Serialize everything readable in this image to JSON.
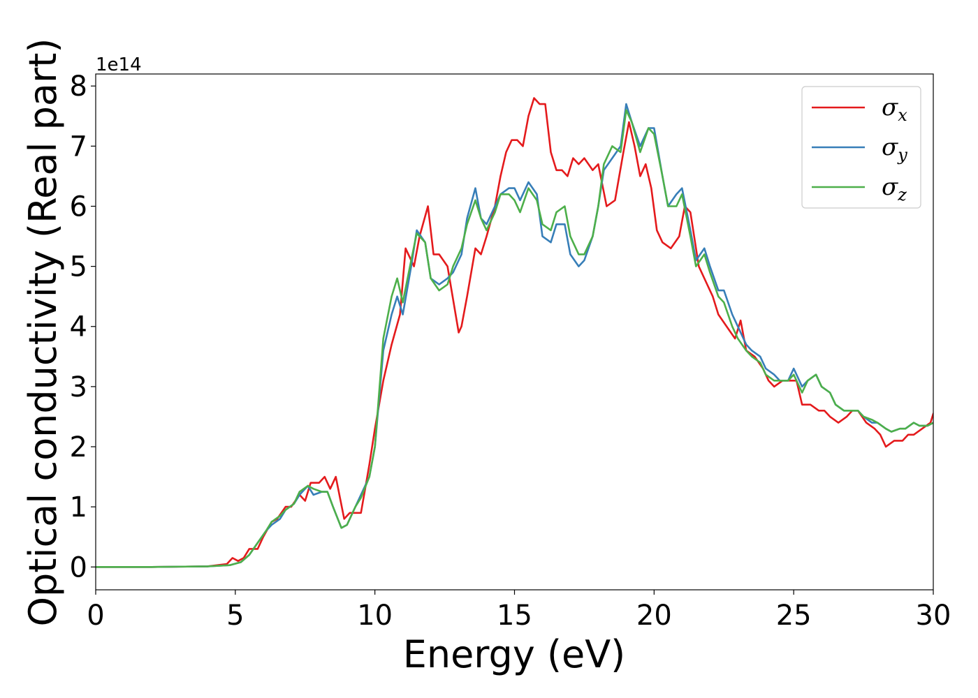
{
  "chart_data": {
    "type": "line",
    "title": "",
    "xlabel": "Energy (eV)",
    "ylabel": "Optical conductivity (Real part)",
    "y_offset_label": "1e14",
    "xlim": [
      0,
      30
    ],
    "ylim": [
      -0.38,
      8.2
    ],
    "xticks": [
      0,
      5,
      10,
      15,
      20,
      25,
      30
    ],
    "xtick_labels": [
      "0",
      "5",
      "10",
      "15",
      "20",
      "25",
      "30"
    ],
    "yticks": [
      0,
      1,
      2,
      3,
      4,
      5,
      6,
      7,
      8
    ],
    "ytick_labels": [
      "0",
      "1",
      "2",
      "3",
      "4",
      "5",
      "6",
      "7",
      "8"
    ],
    "grid": false,
    "legend_position": "top-right",
    "series": [
      {
        "name": "σx",
        "label_base": "σ",
        "label_sub": "x",
        "color": "#e41a1c",
        "x": [
          0,
          2,
          4,
          4.7,
          4.9,
          5.1,
          5.3,
          5.5,
          5.8,
          6.0,
          6.3,
          6.5,
          6.8,
          7.0,
          7.3,
          7.5,
          7.7,
          8.0,
          8.2,
          8.4,
          8.6,
          8.9,
          9.1,
          9.3,
          9.5,
          9.8,
          10.0,
          10.3,
          10.6,
          10.9,
          11.1,
          11.4,
          11.6,
          11.9,
          12.1,
          12.3,
          12.6,
          13.0,
          13.1,
          13.3,
          13.6,
          13.8,
          14.0,
          14.3,
          14.5,
          14.7,
          14.9,
          15.1,
          15.3,
          15.5,
          15.7,
          15.9,
          16.1,
          16.3,
          16.5,
          16.7,
          16.9,
          17.1,
          17.3,
          17.5,
          17.8,
          18.0,
          18.3,
          18.6,
          18.9,
          19.1,
          19.3,
          19.5,
          19.7,
          19.9,
          20.1,
          20.3,
          20.6,
          20.9,
          21.1,
          21.3,
          21.6,
          21.9,
          22.1,
          22.3,
          22.6,
          22.9,
          23.1,
          23.3,
          23.6,
          23.9,
          24.1,
          24.3,
          24.6,
          24.9,
          25.1,
          25.3,
          25.6,
          25.9,
          26.1,
          26.3,
          26.6,
          26.9,
          27.1,
          27.3,
          27.6,
          27.9,
          28.1,
          28.3,
          28.6,
          28.9,
          29.1,
          29.3,
          29.6,
          29.9,
          30.0
        ],
        "y": [
          0,
          0,
          0.01,
          0.05,
          0.15,
          0.1,
          0.15,
          0.3,
          0.3,
          0.5,
          0.75,
          0.8,
          1.0,
          1.0,
          1.2,
          1.1,
          1.4,
          1.4,
          1.5,
          1.3,
          1.5,
          0.8,
          0.9,
          0.9,
          0.9,
          1.7,
          2.3,
          3.1,
          3.7,
          4.2,
          5.3,
          5.0,
          5.5,
          6.0,
          5.2,
          5.2,
          5.0,
          3.9,
          4.0,
          4.5,
          5.3,
          5.2,
          5.5,
          6.0,
          6.5,
          6.9,
          7.1,
          7.1,
          7.0,
          7.5,
          7.8,
          7.7,
          7.7,
          6.9,
          6.6,
          6.6,
          6.5,
          6.8,
          6.7,
          6.8,
          6.6,
          6.7,
          6.0,
          6.1,
          6.9,
          7.4,
          7.0,
          6.5,
          6.7,
          6.3,
          5.6,
          5.4,
          5.3,
          5.5,
          6.0,
          5.9,
          5.0,
          4.7,
          4.5,
          4.2,
          4.0,
          3.8,
          4.1,
          3.6,
          3.5,
          3.3,
          3.1,
          3.0,
          3.1,
          3.1,
          3.1,
          2.7,
          2.7,
          2.6,
          2.6,
          2.5,
          2.4,
          2.5,
          2.6,
          2.6,
          2.4,
          2.3,
          2.2,
          2.0,
          2.1,
          2.1,
          2.2,
          2.2,
          2.3,
          2.4,
          2.55
        ]
      },
      {
        "name": "σy",
        "label_base": "σ",
        "label_sub": "y",
        "color": "#377eb8",
        "x": [
          0,
          2,
          4,
          4.8,
          5.2,
          5.5,
          5.8,
          6.1,
          6.3,
          6.6,
          6.8,
          7.1,
          7.3,
          7.6,
          7.8,
          8.1,
          8.3,
          8.5,
          8.8,
          9.0,
          9.3,
          9.5,
          9.8,
          10.0,
          10.3,
          10.6,
          10.8,
          11.0,
          11.3,
          11.5,
          11.8,
          12.0,
          12.3,
          12.6,
          12.8,
          13.1,
          13.3,
          13.6,
          13.8,
          14.0,
          14.3,
          14.5,
          14.8,
          15.0,
          15.2,
          15.5,
          15.8,
          16.0,
          16.3,
          16.5,
          16.8,
          17.0,
          17.3,
          17.5,
          17.8,
          18.0,
          18.2,
          18.5,
          18.8,
          19.0,
          19.2,
          19.5,
          19.8,
          20.0,
          20.3,
          20.5,
          20.8,
          21.0,
          21.3,
          21.5,
          21.8,
          22.0,
          22.3,
          22.5,
          22.8,
          23.0,
          23.3,
          23.5,
          23.8,
          24.0,
          24.3,
          24.5,
          24.8,
          25.0,
          25.3,
          25.5,
          25.8,
          26.0,
          26.3,
          26.5,
          26.8,
          27.0,
          27.3,
          27.5,
          27.8,
          28.0,
          28.3,
          28.5,
          28.8,
          29.0,
          29.3,
          29.5,
          29.8,
          30.0
        ],
        "y": [
          0,
          0,
          0.01,
          0.03,
          0.08,
          0.2,
          0.4,
          0.6,
          0.7,
          0.8,
          0.95,
          1.05,
          1.2,
          1.35,
          1.2,
          1.25,
          1.25,
          1.0,
          0.65,
          0.7,
          1.0,
          1.2,
          1.5,
          2.0,
          3.6,
          4.2,
          4.5,
          4.2,
          5.0,
          5.6,
          5.4,
          4.8,
          4.7,
          4.8,
          4.9,
          5.2,
          5.8,
          6.3,
          5.8,
          5.7,
          6.0,
          6.2,
          6.3,
          6.3,
          6.1,
          6.4,
          6.2,
          5.5,
          5.4,
          5.7,
          5.7,
          5.2,
          5.0,
          5.1,
          5.5,
          6.0,
          6.6,
          6.8,
          7.0,
          7.7,
          7.4,
          7.0,
          7.3,
          7.3,
          6.5,
          6.0,
          6.2,
          6.3,
          5.6,
          5.1,
          5.3,
          5.0,
          4.6,
          4.6,
          4.2,
          4.0,
          3.7,
          3.6,
          3.5,
          3.3,
          3.2,
          3.1,
          3.1,
          3.3,
          3.0,
          3.1,
          3.2,
          3.0,
          2.9,
          2.7,
          2.6,
          2.6,
          2.6,
          2.5,
          2.4,
          2.4,
          2.3,
          2.25,
          2.3,
          2.3,
          2.4,
          2.35,
          2.35,
          2.4
        ]
      },
      {
        "name": "σz",
        "label_base": "σ",
        "label_sub": "z",
        "color": "#4daf4a",
        "x": [
          0,
          2,
          4,
          4.8,
          5.2,
          5.5,
          5.8,
          6.1,
          6.3,
          6.6,
          6.8,
          7.1,
          7.3,
          7.6,
          7.8,
          8.1,
          8.3,
          8.5,
          8.8,
          9.0,
          9.3,
          9.5,
          9.8,
          10.0,
          10.3,
          10.6,
          10.8,
          11.0,
          11.3,
          11.5,
          11.8,
          12.0,
          12.3,
          12.6,
          12.8,
          13.1,
          13.3,
          13.6,
          13.8,
          14.0,
          14.3,
          14.5,
          14.8,
          15.0,
          15.2,
          15.5,
          15.8,
          16.0,
          16.3,
          16.5,
          16.8,
          17.0,
          17.3,
          17.5,
          17.8,
          18.0,
          18.2,
          18.5,
          18.8,
          19.0,
          19.2,
          19.5,
          19.8,
          20.0,
          20.3,
          20.5,
          20.8,
          21.0,
          21.3,
          21.5,
          21.8,
          22.0,
          22.3,
          22.5,
          22.8,
          23.0,
          23.3,
          23.5,
          23.8,
          24.0,
          24.3,
          24.5,
          24.8,
          25.0,
          25.3,
          25.5,
          25.8,
          26.0,
          26.3,
          26.5,
          26.8,
          27.0,
          27.3,
          27.5,
          27.8,
          28.0,
          28.3,
          28.5,
          28.8,
          29.0,
          29.3,
          29.5,
          29.8,
          30.0
        ],
        "y": [
          0,
          0,
          0.01,
          0.03,
          0.08,
          0.2,
          0.4,
          0.6,
          0.75,
          0.85,
          0.95,
          1.05,
          1.25,
          1.35,
          1.3,
          1.25,
          1.25,
          1.0,
          0.65,
          0.7,
          1.0,
          1.15,
          1.5,
          2.0,
          3.8,
          4.5,
          4.8,
          4.4,
          5.1,
          5.55,
          5.4,
          4.8,
          4.6,
          4.7,
          5.0,
          5.3,
          5.7,
          6.1,
          5.8,
          5.6,
          5.9,
          6.2,
          6.2,
          6.1,
          5.9,
          6.3,
          6.1,
          5.7,
          5.6,
          5.9,
          6.0,
          5.5,
          5.2,
          5.2,
          5.5,
          6.0,
          6.7,
          7.0,
          6.9,
          7.6,
          7.4,
          6.9,
          7.3,
          7.2,
          6.5,
          6.0,
          6.0,
          6.2,
          5.5,
          5.0,
          5.2,
          4.9,
          4.5,
          4.4,
          4.0,
          3.8,
          3.6,
          3.5,
          3.4,
          3.2,
          3.1,
          3.1,
          3.1,
          3.2,
          2.9,
          3.1,
          3.2,
          3.0,
          2.9,
          2.7,
          2.6,
          2.6,
          2.6,
          2.5,
          2.45,
          2.4,
          2.3,
          2.25,
          2.3,
          2.3,
          2.4,
          2.35,
          2.35,
          2.4
        ]
      }
    ]
  }
}
